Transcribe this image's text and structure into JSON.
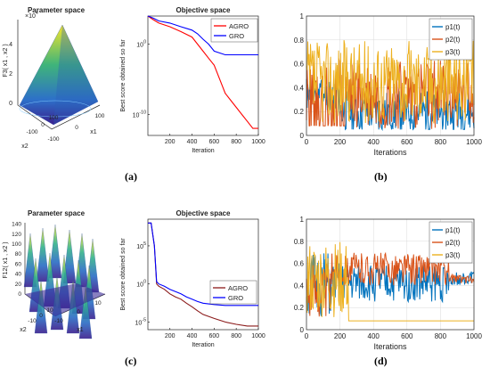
{
  "panels": [
    {
      "id": "a",
      "label": "(a)"
    },
    {
      "id": "b",
      "label": "(b)"
    },
    {
      "id": "c",
      "label": "(c)"
    },
    {
      "id": "d",
      "label": "(d)"
    }
  ],
  "chart_data": [
    {
      "panel": "a-left",
      "type": "surface",
      "title": "Parameter space",
      "zlabel": "F3( x1 , x2 )",
      "zscale_label": "×10^4",
      "zticks": [
        "0",
        "2",
        "4"
      ],
      "x1label": "x1",
      "x2label": "x2",
      "x1ticks": [
        "-100",
        "0",
        "100"
      ],
      "x2ticks": [
        "-100",
        "0",
        "100"
      ]
    },
    {
      "panel": "a-right",
      "type": "line",
      "title": "Objective space",
      "xlabel": "Iteration",
      "ylabel": "Best score obtained so far",
      "yscale": "log",
      "xticks": [
        "200",
        "400",
        "600",
        "800",
        "1000"
      ],
      "yticks": [
        "10^0",
        "10^-10"
      ],
      "legend": "top-right",
      "series": [
        {
          "name": "AGRO",
          "color": "#ff0000",
          "x": [
            1,
            50,
            100,
            200,
            300,
            400,
            450,
            500,
            550,
            600,
            650,
            700,
            750,
            800,
            850,
            900,
            950,
            1000
          ],
          "y": [
            10000.0,
            3000.0,
            1000.0,
            300.0,
            60,
            10,
            1,
            0.1,
            0.01,
            0.001,
            1e-05,
            1e-07,
            1e-08,
            1e-09,
            1e-10,
            1e-11,
            1e-12,
            1e-12
          ]
        },
        {
          "name": "GRO",
          "color": "#0000ff",
          "x": [
            1,
            50,
            100,
            200,
            300,
            400,
            450,
            500,
            550,
            600,
            700,
            800,
            900,
            1000
          ],
          "y": [
            10000.0,
            5000.0,
            2000.0,
            1000.0,
            300,
            100,
            30,
            5,
            1,
            0.1,
            0.03,
            0.03,
            0.03,
            0.03
          ]
        }
      ]
    },
    {
      "panel": "b",
      "type": "line",
      "xlabel": "Iterations",
      "xlim": [
        0,
        1000
      ],
      "ylim": [
        0,
        1
      ],
      "xticks": [
        "0",
        "200",
        "400",
        "600",
        "800",
        "1000"
      ],
      "yticks": [
        "0",
        "0.2",
        "0.4",
        "0.6",
        "0.8",
        "1"
      ],
      "legend": "top-right",
      "series": [
        {
          "name": "p1(t)",
          "color": "#0072bd",
          "mean": 0.2,
          "amp": 0.18,
          "seed": 11
        },
        {
          "name": "p2(t)",
          "color": "#d95319",
          "mean": 0.35,
          "amp": 0.3,
          "seed": 23
        },
        {
          "name": "p3(t)",
          "color": "#edb120",
          "mean": 0.45,
          "amp": 0.35,
          "seed": 37
        }
      ]
    },
    {
      "panel": "c-left",
      "type": "surface",
      "title": "Parameter space",
      "zlabel": "F12( x1 , x2 )",
      "zticks": [
        "0",
        "20",
        "40",
        "60",
        "80",
        "100",
        "120",
        "140"
      ],
      "x1label": "x1",
      "x2label": "x2",
      "x1ticks": [
        "-10",
        "0",
        "10"
      ],
      "x2ticks": [
        "-10",
        "0",
        "10"
      ]
    },
    {
      "panel": "c-right",
      "type": "line",
      "title": "Objective space",
      "xlabel": "Iteration",
      "ylabel": "Best score obtained so far",
      "yscale": "log",
      "xticks": [
        "200",
        "400",
        "600",
        "800",
        "1000"
      ],
      "yticks": [
        "10^5",
        "10^0",
        "10^-5"
      ],
      "legend": "right",
      "series": [
        {
          "name": "AGRO",
          "color": "#8b1a1a",
          "x": [
            1,
            30,
            60,
            80,
            100,
            150,
            200,
            250,
            300,
            350,
            400,
            450,
            500,
            600,
            700,
            800,
            900,
            1000
          ],
          "y": [
            100000000.0,
            100000000.0,
            100000.0,
            1,
            0.5,
            0.2,
            0.05,
            0.02,
            0.01,
            0.003,
            0.001,
            0.0003,
            0.0001,
            3e-05,
            1e-05,
            5e-06,
            3e-06,
            3e-06
          ]
        },
        {
          "name": "GRO",
          "color": "#0000ff",
          "x": [
            1,
            30,
            60,
            80,
            100,
            150,
            200,
            250,
            300,
            350,
            400,
            450,
            500,
            600,
            700,
            800,
            900,
            1000
          ],
          "y": [
            100000000.0,
            100000000.0,
            100000.0,
            2,
            1,
            0.5,
            0.2,
            0.1,
            0.05,
            0.02,
            0.01,
            0.005,
            0.003,
            0.002,
            0.0015,
            0.0015,
            0.0015,
            0.0015
          ]
        }
      ]
    },
    {
      "panel": "d",
      "type": "line",
      "xlabel": "Iterations",
      "xlim": [
        0,
        1000
      ],
      "ylim": [
        0,
        1
      ],
      "xticks": [
        "0",
        "200",
        "400",
        "600",
        "800",
        "1000"
      ],
      "yticks": [
        "0",
        "0.2",
        "0.4",
        "0.6",
        "0.8",
        "1"
      ],
      "legend": "top-right",
      "series": [
        {
          "name": "p1(t)",
          "color": "#0072bd",
          "mean": 0.4,
          "amp": 0.3,
          "seed": 51
        },
        {
          "name": "p2(t)",
          "color": "#d95319",
          "mean": 0.5,
          "amp": 0.25,
          "seed": 63
        },
        {
          "name": "p3(t)",
          "color": "#edb120",
          "mean": 0.08,
          "amp": 0.0,
          "seed": 77
        }
      ]
    }
  ]
}
